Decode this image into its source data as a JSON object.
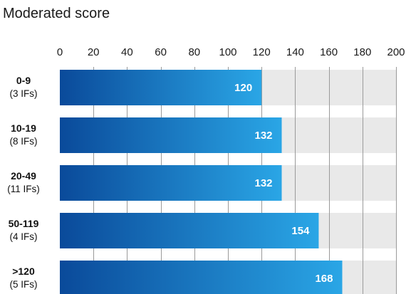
{
  "chart_data": {
    "type": "bar",
    "orientation": "horizontal",
    "title": "Moderated score",
    "xlabel": "",
    "ylabel": "",
    "xlim": [
      0,
      200
    ],
    "x_ticks": [
      0,
      20,
      40,
      60,
      80,
      100,
      120,
      140,
      160,
      180,
      200
    ],
    "axis_position": "top",
    "grid": true,
    "categories": [
      "0-9",
      "10-19",
      "20-49",
      "50-119",
      ">120"
    ],
    "category_sublabels": [
      "(3 IFs)",
      "(8 IFs)",
      "(11 IFs)",
      "(4 IFs)",
      "(5 IFs)"
    ],
    "values": [
      120,
      132,
      132,
      154,
      168
    ],
    "data_labels": [
      "120",
      "132",
      "132",
      "154",
      "168"
    ],
    "colors": {
      "bar_start": "#0a4a9a",
      "bar_end": "#2aa6e6",
      "track": "#e9e9e9",
      "grid": "#9a9a9a"
    }
  }
}
